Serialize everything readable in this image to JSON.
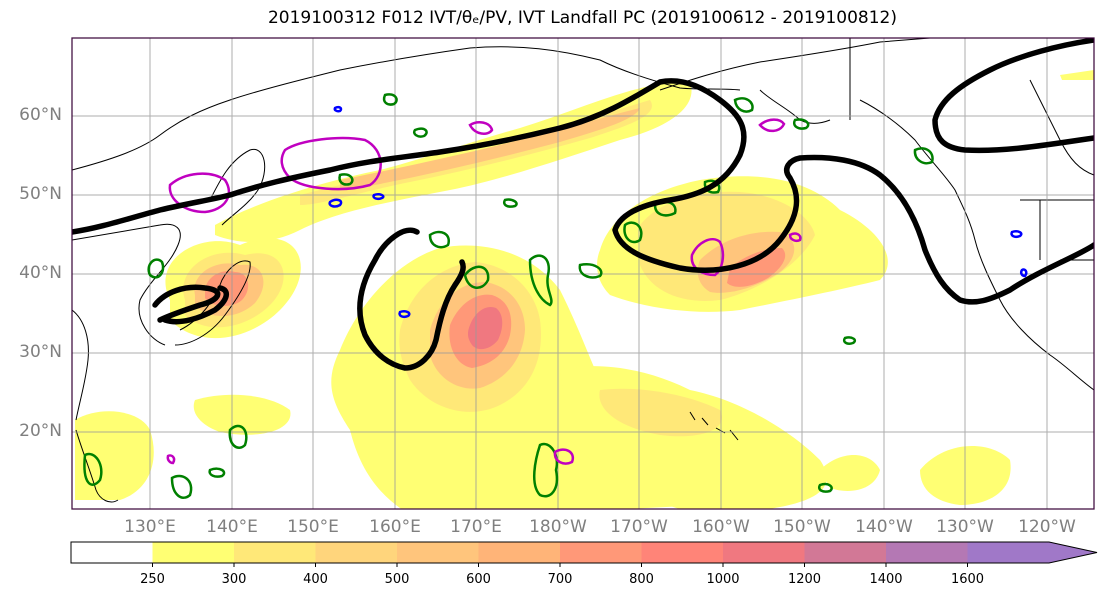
{
  "title": "2019100312 F012 IVT/θₑ/PV, IVT Landfall PC (2019100612 - 2019100812)",
  "map": {
    "lat_labels": [
      "60°N",
      "50°N",
      "40°N",
      "30°N",
      "20°N"
    ],
    "lon_labels": [
      "130°E",
      "140°E",
      "150°E",
      "160°E",
      "170°E",
      "180°W",
      "170°W",
      "160°W",
      "150°W",
      "140°W",
      "130°W",
      "120°W"
    ],
    "colors": {
      "theta_e_contour": "#000000",
      "pv_positive_contour": "#008000",
      "pv_negative_contour": "#0000ff",
      "landfall_pc_contour": "#c000c0",
      "coastline": "#000000",
      "gridline": "#999999"
    }
  },
  "colorbar": {
    "ticks": [
      "250",
      "300",
      "400",
      "500",
      "600",
      "700",
      "800",
      "1000",
      "1200",
      "1400",
      "1600"
    ],
    "colors": [
      "#ffffff",
      "#ffff73",
      "#ffe878",
      "#ffd57c",
      "#ffc57c",
      "#ffb478",
      "#ff9878",
      "#ff8478",
      "#f07880",
      "#d27896",
      "#b478b4",
      "#a078c8"
    ],
    "extend": "max"
  }
}
